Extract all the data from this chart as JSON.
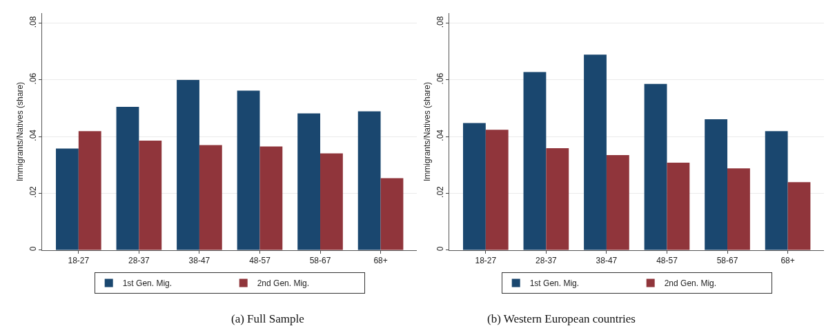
{
  "chart_data": [
    {
      "type": "bar",
      "title": "(a) Full Sample",
      "ylabel": "Immigrants/Natives (share)",
      "categories": [
        "18-27",
        "28-37",
        "38-47",
        "48-57",
        "58-67",
        "68+"
      ],
      "series": [
        {
          "name": "1st Gen. Mig.",
          "color": "#1a476f",
          "values": [
            0.0358,
            0.0505,
            0.06,
            0.0562,
            0.0482,
            0.0489
          ]
        },
        {
          "name": "2nd Gen. Mig.",
          "color": "#90353b",
          "values": [
            0.0419,
            0.0386,
            0.037,
            0.0365,
            0.0341,
            0.0253
          ]
        }
      ],
      "ylim": [
        0,
        0.0835
      ],
      "yticks": [
        {
          "value": 0,
          "label": "0"
        },
        {
          "value": 0.02,
          "label": ".02"
        },
        {
          "value": 0.04,
          "label": ".04"
        },
        {
          "value": 0.06,
          "label": ".06"
        },
        {
          "value": 0.08,
          "label": ".08"
        }
      ],
      "grid": "y",
      "legend": "bottom"
    },
    {
      "type": "bar",
      "title": "(b) Western European countries",
      "ylabel": "Immigrants/Natives (share)",
      "categories": [
        "18-27",
        "28-37",
        "38-47",
        "48-57",
        "58-67",
        "68+"
      ],
      "series": [
        {
          "name": "1st Gen. Mig.",
          "color": "#1a476f",
          "values": [
            0.0448,
            0.0628,
            0.0689,
            0.0586,
            0.0461,
            0.0419
          ]
        },
        {
          "name": "2nd Gen. Mig.",
          "color": "#90353b",
          "values": [
            0.0424,
            0.0359,
            0.0335,
            0.0308,
            0.0288,
            0.0239
          ]
        }
      ],
      "ylim": [
        0,
        0.0835
      ],
      "yticks": [
        {
          "value": 0,
          "label": "0"
        },
        {
          "value": 0.02,
          "label": ".02"
        },
        {
          "value": 0.04,
          "label": ".04"
        },
        {
          "value": 0.06,
          "label": ".06"
        },
        {
          "value": 0.08,
          "label": ".08"
        }
      ],
      "grid": "y",
      "legend": "bottom"
    }
  ]
}
